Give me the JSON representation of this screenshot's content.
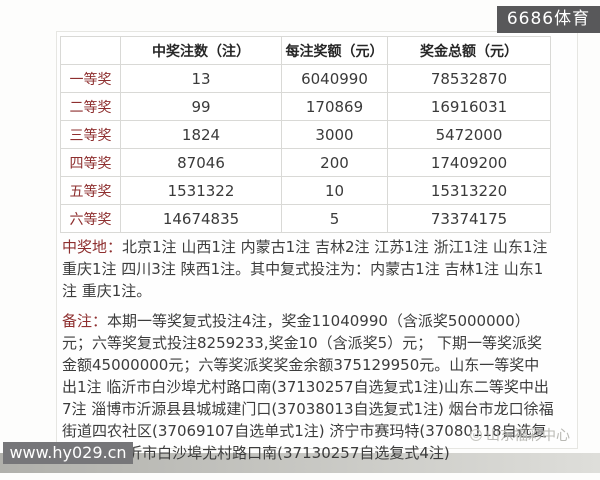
{
  "header_badge": {
    "label": "6686体育"
  },
  "table": {
    "headers": {
      "tier": "",
      "count": "中奖注数（注）",
      "per_prize": "每注奖额（元）",
      "total": "奖金总额（元）"
    },
    "rows": [
      {
        "tier": "一等奖",
        "count": "13",
        "per_prize": "6040990",
        "total": "78532870"
      },
      {
        "tier": "二等奖",
        "count": "99",
        "per_prize": "170869",
        "total": "16916031"
      },
      {
        "tier": "三等奖",
        "count": "1824",
        "per_prize": "3000",
        "total": "5472000"
      },
      {
        "tier": "四等奖",
        "count": "87046",
        "per_prize": "200",
        "total": "17409200"
      },
      {
        "tier": "五等奖",
        "count": "1531322",
        "per_prize": "10",
        "total": "15313220"
      },
      {
        "tier": "六等奖",
        "count": "14674835",
        "per_prize": "5",
        "total": "73374175"
      }
    ]
  },
  "winning_location": {
    "label": "中奖地：",
    "text": "北京1注 山西1注 内蒙古1注 吉林2注 江苏1注 浙江1注 山东1注 重庆1注 四川3注 陕西1注。其中复式投注为：内蒙古1注 吉林1注 山东1注 重庆1注。"
  },
  "remark": {
    "label": "备注：",
    "text": "本期一等奖复式投注4注，奖金11040990（含派奖5000000）元；六等奖复式投注8259233,奖金10（含派奖5）元； 下期一等奖派奖金额45000000元；六等奖派奖奖金余额375129950元。山东一等奖中出1注 临沂市白沙埠尤村路口南(37130257自选复式1注)山东二等奖中出7注 淄博市沂源县县城城建门口(37038013自选复式1注) 烟台市龙口徐福街道四农社区(37069107自选单式1注) 济宁市赛玛特(37080118自选复式1注) 临沂市白沙埠尤村路口南(37130257自选复式4注)"
  },
  "watermarks": {
    "site": "www.hy029.cn",
    "center": "山东福彩中心"
  },
  "colors": {
    "accent_red": "#8e2f2f",
    "badge_dark": "#58585a",
    "badge_gray": "#767679",
    "watermark_gray": "#b9b9b4"
  }
}
